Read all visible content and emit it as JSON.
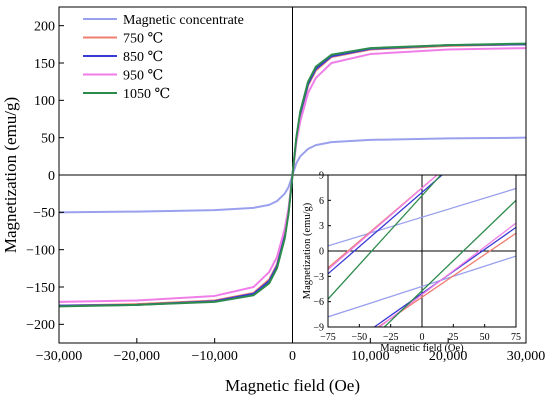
{
  "chart_data": [
    {
      "type": "line",
      "title": "",
      "xlabel": "Magnetic field (Oe)",
      "ylabel": "Magnetization (emu/g)",
      "xlim": [
        -30000,
        30000
      ],
      "ylim": [
        -225,
        225
      ],
      "xticks": [
        -30000,
        -20000,
        -10000,
        0,
        10000,
        20000,
        30000
      ],
      "xtick_labels": [
        "−30,000",
        "−20,000",
        "−10,000",
        "0",
        "10,000",
        "20,000",
        "30,000"
      ],
      "yticks": [
        -200,
        -150,
        -100,
        -50,
        0,
        50,
        100,
        150,
        200
      ],
      "ytick_labels": [
        "−200",
        "−150",
        "−100",
        "−50",
        "0",
        "50",
        "100",
        "150",
        "200"
      ],
      "grid": false,
      "legend_position": "top-left",
      "series": [
        {
          "name": "Magnetic concentrate",
          "color": "#9aa0ee",
          "x": [
            -30000,
            -20000,
            -10000,
            -5000,
            -3000,
            -2000,
            -1000,
            -500,
            0,
            500,
            1000,
            2000,
            3000,
            5000,
            10000,
            20000,
            30000
          ],
          "y": [
            -50,
            -49,
            -47,
            -44,
            -40,
            -35,
            -25,
            -16,
            0,
            16,
            25,
            35,
            40,
            44,
            47,
            49,
            50
          ]
        },
        {
          "name": "750 ℃",
          "color": "#ef7e72",
          "x": [
            -30000,
            -20000,
            -10000,
            -5000,
            -3000,
            -2000,
            -1000,
            -500,
            0,
            500,
            1000,
            2000,
            3000,
            5000,
            10000,
            20000,
            30000
          ],
          "y": [
            -175,
            -173,
            -168,
            -158,
            -140,
            -120,
            -80,
            -48,
            0,
            48,
            80,
            120,
            140,
            158,
            168,
            173,
            175
          ]
        },
        {
          "name": "850 ℃",
          "color": "#3a3ad6",
          "x": [
            -30000,
            -20000,
            -10000,
            -5000,
            -3000,
            -2000,
            -1000,
            -500,
            0,
            500,
            1000,
            2000,
            3000,
            5000,
            10000,
            20000,
            30000
          ],
          "y": [
            -175,
            -174,
            -169,
            -159,
            -142,
            -122,
            -82,
            -49,
            0,
            49,
            82,
            122,
            142,
            159,
            169,
            174,
            175
          ]
        },
        {
          "name": "950 ℃",
          "color": "#f07ee8",
          "x": [
            -30000,
            -20000,
            -10000,
            -5000,
            -3000,
            -2000,
            -1000,
            -500,
            0,
            500,
            1000,
            2000,
            3000,
            5000,
            10000,
            20000,
            30000
          ],
          "y": [
            -170,
            -168,
            -162,
            -150,
            -130,
            -110,
            -72,
            -44,
            0,
            44,
            72,
            110,
            130,
            150,
            162,
            168,
            170
          ]
        },
        {
          "name": "1050 ℃",
          "color": "#2e8b4e",
          "x": [
            -30000,
            -20000,
            -10000,
            -5000,
            -3000,
            -2000,
            -1000,
            -500,
            0,
            500,
            1000,
            2000,
            3000,
            5000,
            10000,
            20000,
            30000
          ],
          "y": [
            -176,
            -174,
            -170,
            -161,
            -145,
            -125,
            -85,
            -51,
            0,
            51,
            85,
            125,
            145,
            161,
            170,
            174,
            176
          ]
        }
      ]
    },
    {
      "type": "line",
      "title": "",
      "xlabel": "Magnetic field (Oe)",
      "ylabel": "Magnetization (emu/g)",
      "xlim": [
        -75,
        75
      ],
      "ylim": [
        -9,
        9
      ],
      "xticks": [
        -75,
        -50,
        -25,
        0,
        25,
        50,
        75
      ],
      "xtick_labels": [
        "−75",
        "−50",
        "−25",
        "0",
        "25",
        "50",
        "75"
      ],
      "yticks": [
        -9,
        -6,
        -3,
        0,
        3,
        6,
        9
      ],
      "ytick_labels": [
        "−9",
        "−6",
        "−3",
        "0",
        "3",
        "6",
        "9"
      ],
      "grid": false,
      "legend_position": "none",
      "series": [
        {
          "name": "Magnetic concentrate",
          "color": "#9aa0ee",
          "x": [
            -75,
            75
          ],
          "y": [
            0.6,
            7.4
          ]
        },
        {
          "name": "Magnetic concentrate",
          "color": "#9aa0ee",
          "x": [
            -75,
            75
          ],
          "y": [
            -7.8,
            -0.6
          ]
        },
        {
          "name": "750 ℃",
          "color": "#ef7e72",
          "x": [
            -75,
            12
          ],
          "y": [
            -2.0,
            9.0
          ]
        },
        {
          "name": "750 ℃",
          "color": "#ef7e72",
          "x": [
            -35,
            75
          ],
          "y": [
            -9.0,
            2.1
          ]
        },
        {
          "name": "850 ℃",
          "color": "#3a3ad6",
          "x": [
            -75,
            16
          ],
          "y": [
            -2.7,
            9.0
          ]
        },
        {
          "name": "850 ℃",
          "color": "#3a3ad6",
          "x": [
            -38,
            75
          ],
          "y": [
            -9.0,
            2.8
          ]
        },
        {
          "name": "950 ℃",
          "color": "#f07ee8",
          "x": [
            -75,
            12
          ],
          "y": [
            -2.2,
            9.0
          ]
        },
        {
          "name": "950 ℃",
          "color": "#f07ee8",
          "x": [
            -34,
            75
          ],
          "y": [
            -9.0,
            3.3
          ]
        },
        {
          "name": "1050 ℃",
          "color": "#2e8b4e",
          "x": [
            -75,
            15
          ],
          "y": [
            -5.7,
            9.0
          ]
        },
        {
          "name": "1050 ℃",
          "color": "#2e8b4e",
          "x": [
            -30,
            75
          ],
          "y": [
            -9.0,
            6.0
          ]
        }
      ]
    }
  ]
}
